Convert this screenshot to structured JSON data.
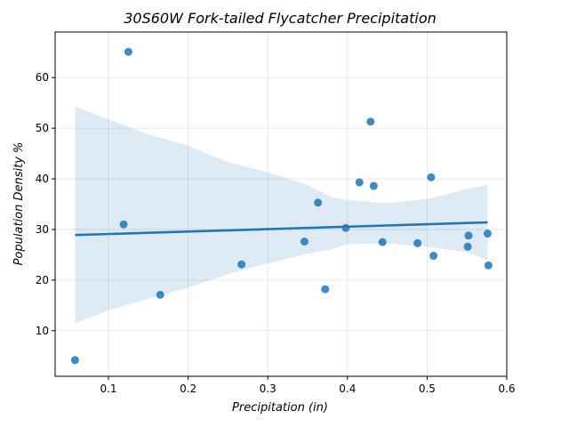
{
  "chart_data": {
    "type": "scatter",
    "title": "30S60W Fork-tailed Flycatcher Precipitation",
    "xlabel": "Precipitation (in)",
    "ylabel": "Population Density %",
    "xlim": [
      0.033,
      0.6
    ],
    "ylim": [
      1.0,
      69.0
    ],
    "xticks": [
      0.1,
      0.2,
      0.3,
      0.4,
      0.5,
      0.6
    ],
    "yticks": [
      10,
      20,
      30,
      40,
      50,
      60
    ],
    "grid": true,
    "colors": {
      "points": "#1f77b4",
      "line": "#1f77b4",
      "band": "#1f77b4"
    },
    "points": [
      {
        "x": 0.058,
        "y": 4.2
      },
      {
        "x": 0.119,
        "y": 31.0
      },
      {
        "x": 0.125,
        "y": 65.1
      },
      {
        "x": 0.165,
        "y": 17.1
      },
      {
        "x": 0.267,
        "y": 23.1
      },
      {
        "x": 0.346,
        "y": 27.6
      },
      {
        "x": 0.363,
        "y": 35.3
      },
      {
        "x": 0.372,
        "y": 18.2
      },
      {
        "x": 0.398,
        "y": 30.3
      },
      {
        "x": 0.415,
        "y": 39.3
      },
      {
        "x": 0.429,
        "y": 51.3
      },
      {
        "x": 0.433,
        "y": 38.6
      },
      {
        "x": 0.444,
        "y": 27.5
      },
      {
        "x": 0.488,
        "y": 27.3
      },
      {
        "x": 0.505,
        "y": 40.3
      },
      {
        "x": 0.508,
        "y": 24.8
      },
      {
        "x": 0.551,
        "y": 26.6
      },
      {
        "x": 0.552,
        "y": 28.8
      },
      {
        "x": 0.576,
        "y": 29.2
      },
      {
        "x": 0.577,
        "y": 22.9
      }
    ],
    "regression": {
      "x": [
        0.058,
        0.576
      ],
      "y": [
        28.9,
        31.4
      ]
    },
    "confidence_band": {
      "x": [
        0.058,
        0.1,
        0.15,
        0.2,
        0.25,
        0.3,
        0.35,
        0.38,
        0.4,
        0.45,
        0.5,
        0.55,
        0.576
      ],
      "upper": [
        54.3,
        51.8,
        48.8,
        46.5,
        43.3,
        41.3,
        38.8,
        36.4,
        35.8,
        35.2,
        36.0,
        38.0,
        38.8
      ],
      "lower": [
        11.5,
        14.0,
        16.3,
        18.5,
        21.2,
        23.3,
        25.2,
        26.1,
        27.1,
        27.2,
        26.6,
        25.5,
        24.0
      ]
    }
  }
}
